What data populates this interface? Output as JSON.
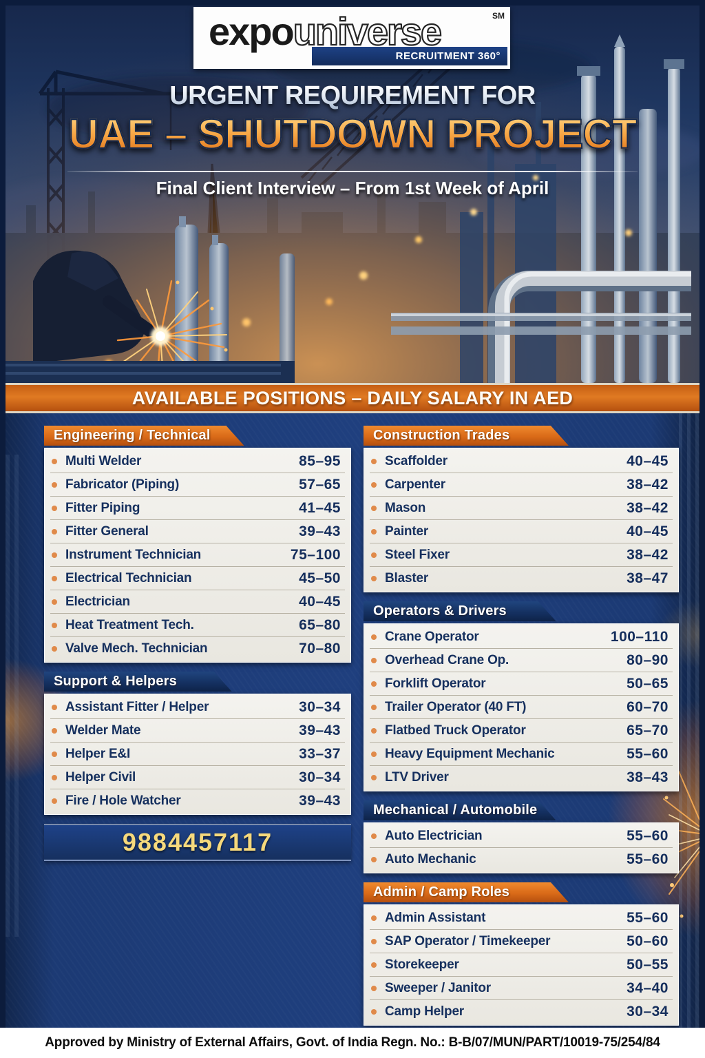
{
  "logo": {
    "expo": "expo",
    "universe": "universe",
    "trademark": "SM",
    "tagline": "RECRUITMENT 360°"
  },
  "header": {
    "line1": "URGENT REQUIREMENT FOR",
    "line2": "UAE – SHUTDOWN PROJECT",
    "subtitle": "Final Client Interview – From 1st Week of April"
  },
  "banner": {
    "text": "AVAILABLE POSITIONS – DAILY SALARY IN AED"
  },
  "contact": {
    "phone": "9884457117"
  },
  "footer": {
    "text": "Approved by Ministry of External Affairs, Govt. of India Regn. No.: B-B/07/MUN/PART/10019-75/254/84"
  },
  "colors": {
    "accent_orange": "#d96a18",
    "navy": "#16305e",
    "panel_bg": "#f0efe9",
    "phone_gold": "#f6d97c",
    "lower_bg": "#1f3f7e"
  },
  "sections": [
    {
      "id": "engineering-technical",
      "title": "Engineering / Technical",
      "style": "orange",
      "column": "left",
      "items": [
        {
          "role": "Multi Welder",
          "salary": "85–95"
        },
        {
          "role": "Fabricator (Piping)",
          "salary": "57–65"
        },
        {
          "role": "Fitter Piping",
          "salary": "41–45"
        },
        {
          "role": "Fitter General",
          "salary": "39–43"
        },
        {
          "role": "Instrument Technician",
          "salary": "75–100"
        },
        {
          "role": "Electrical Technician",
          "salary": "45–50"
        },
        {
          "role": "Electrician",
          "salary": "40–45"
        },
        {
          "role": "Heat Treatment Tech.",
          "salary": "65–80"
        },
        {
          "role": "Valve Mech. Technician",
          "salary": "70–80"
        }
      ]
    },
    {
      "id": "support-helpers",
      "title": "Support & Helpers",
      "style": "navy",
      "column": "left",
      "items": [
        {
          "role": "Assistant Fitter / Helper",
          "salary": "30–34"
        },
        {
          "role": "Welder Mate",
          "salary": "39–43"
        },
        {
          "role": "Helper E&I",
          "salary": "33–37"
        },
        {
          "role": "Helper Civil",
          "salary": "30–34"
        },
        {
          "role": "Fire / Hole Watcher",
          "salary": "39–43"
        }
      ]
    },
    {
      "id": "construction-trades",
      "title": "Construction Trades",
      "style": "orange",
      "column": "right",
      "items": [
        {
          "role": "Scaffolder",
          "salary": "40–45"
        },
        {
          "role": "Carpenter",
          "salary": "38–42"
        },
        {
          "role": "Mason",
          "salary": "38–42"
        },
        {
          "role": "Painter",
          "salary": "40–45"
        },
        {
          "role": "Steel Fixer",
          "salary": "38–42"
        },
        {
          "role": "Blaster",
          "salary": "38–47"
        }
      ]
    },
    {
      "id": "operators-drivers",
      "title": "Operators & Drivers",
      "style": "navy",
      "column": "right",
      "items": [
        {
          "role": "Crane Operator",
          "salary": "100–110"
        },
        {
          "role": "Overhead Crane Op.",
          "salary": "80–90"
        },
        {
          "role": "Forklift Operator",
          "salary": "50–65"
        },
        {
          "role": "Trailer Operator (40 FT)",
          "salary": "60–70"
        },
        {
          "role": "Flatbed Truck Operator",
          "salary": "65–70"
        },
        {
          "role": "Heavy Equipment Mechanic",
          "salary": "55–60"
        },
        {
          "role": "LTV Driver",
          "salary": "38–43"
        }
      ]
    },
    {
      "id": "mechanical-automobile",
      "title": "Mechanical / Automobile",
      "style": "navy",
      "column": "right",
      "items": [
        {
          "role": "Auto Electrician",
          "salary": "55–60"
        },
        {
          "role": "Auto Mechanic",
          "salary": "55–60"
        }
      ]
    },
    {
      "id": "admin-camp-roles",
      "title": "Admin / Camp Roles",
      "style": "orange",
      "column": "right",
      "items": [
        {
          "role": "Admin Assistant",
          "salary": "55–60"
        },
        {
          "role": "SAP Operator / Timekeeper",
          "salary": "50–60"
        },
        {
          "role": "Storekeeper",
          "salary": "50–55"
        },
        {
          "role": "Sweeper / Janitor",
          "salary": "34–40"
        },
        {
          "role": "Camp Helper",
          "salary": "30–34"
        }
      ]
    }
  ]
}
